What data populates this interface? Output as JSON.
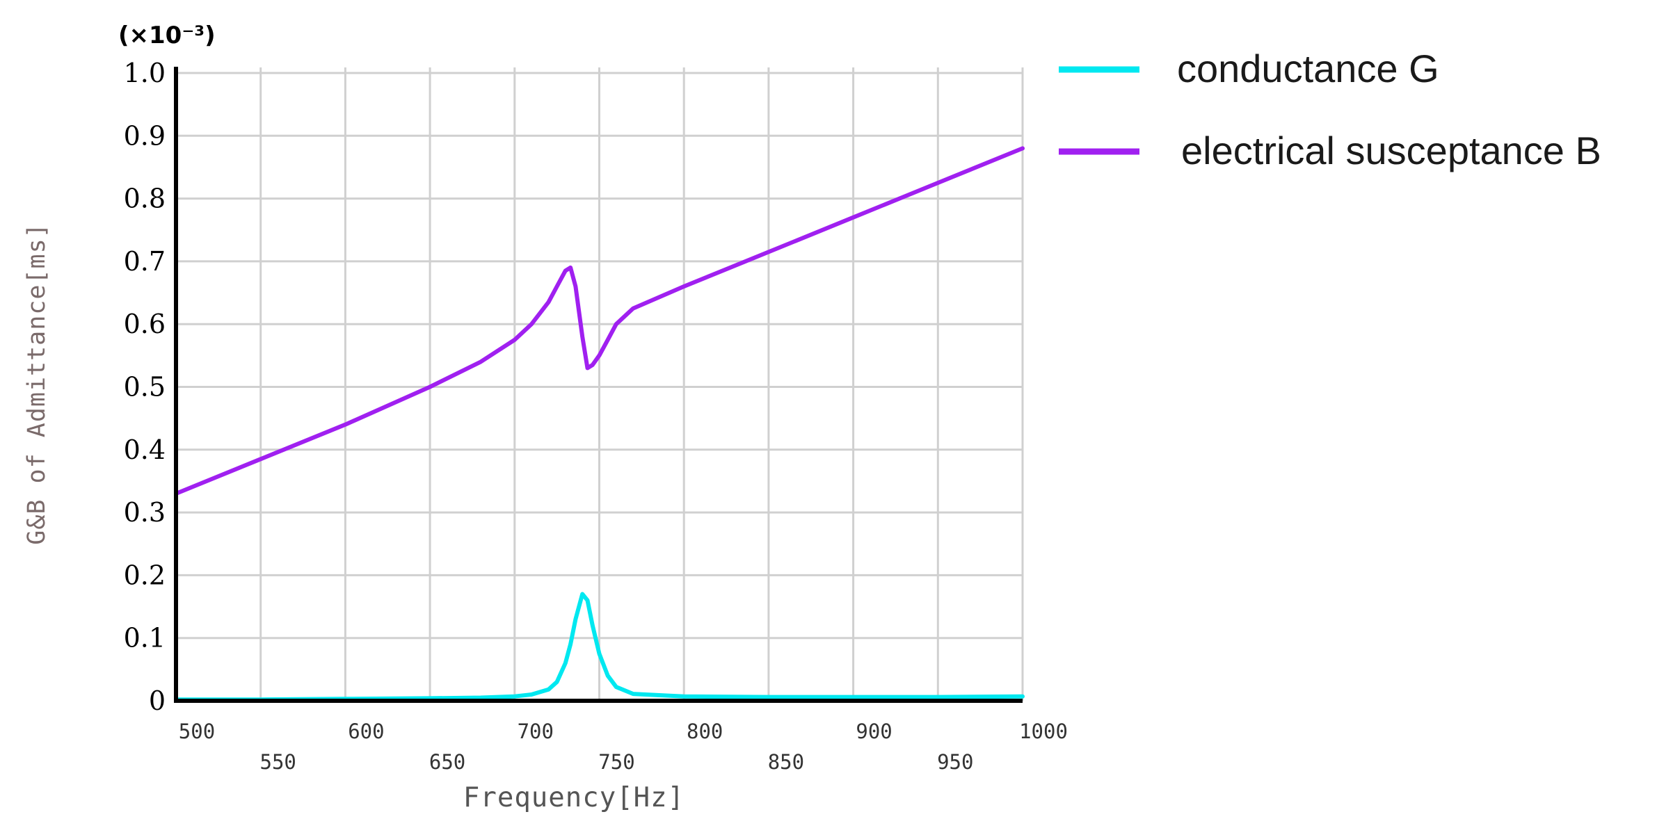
{
  "chart_data": {
    "type": "line",
    "title": "",
    "multiplier": "(×10⁻³)",
    "xlabel": "Frequency[Hz]",
    "ylabel": "G&B of Admittance[ms]",
    "xlim": [
      500,
      1000
    ],
    "ylim": [
      0,
      1.0
    ],
    "grid": true,
    "legend_position": "top-right (outside plot)",
    "y_ticks": [
      "0",
      "0.1",
      "0.2",
      "0.3",
      "0.4",
      "0.5",
      "0.6",
      "0.7",
      "0.8",
      "0.9",
      "1.0"
    ],
    "x_ticks_upper": [
      "500",
      "600",
      "650",
      "700",
      "750",
      "800",
      "900",
      "1000"
    ],
    "x_ticks_lower": [
      "550",
      "600",
      "650",
      "700",
      "750",
      "800",
      "850",
      "900",
      "950"
    ],
    "x_ticks_row1": [
      "500",
      "600",
      "700",
      "800",
      "900",
      "1000"
    ],
    "x_ticks_row2": [
      "550",
      "650",
      "750",
      "850",
      "950"
    ],
    "series": [
      {
        "name": "conductance G",
        "color": "#00e8f0",
        "x": [
          500,
          550,
          600,
          650,
          680,
          700,
          710,
          720,
          725,
          730,
          733,
          736,
          740,
          743,
          746,
          750,
          755,
          760,
          770,
          800,
          850,
          900,
          950,
          1000
        ],
        "y": [
          0.002,
          0.002,
          0.003,
          0.004,
          0.005,
          0.007,
          0.01,
          0.018,
          0.03,
          0.06,
          0.09,
          0.13,
          0.17,
          0.16,
          0.12,
          0.075,
          0.04,
          0.022,
          0.011,
          0.007,
          0.006,
          0.006,
          0.006,
          0.007
        ]
      },
      {
        "name": "electrical susceptance B",
        "color": "#a020f0",
        "x": [
          500,
          550,
          600,
          650,
          680,
          700,
          710,
          720,
          725,
          730,
          733,
          736,
          740,
          743,
          746,
          750,
          755,
          760,
          770,
          800,
          850,
          900,
          950,
          1000
        ],
        "y": [
          0.33,
          0.385,
          0.44,
          0.5,
          0.54,
          0.575,
          0.6,
          0.635,
          0.66,
          0.685,
          0.69,
          0.66,
          0.58,
          0.53,
          0.535,
          0.55,
          0.575,
          0.6,
          0.625,
          0.66,
          0.715,
          0.77,
          0.825,
          0.88
        ]
      }
    ]
  }
}
